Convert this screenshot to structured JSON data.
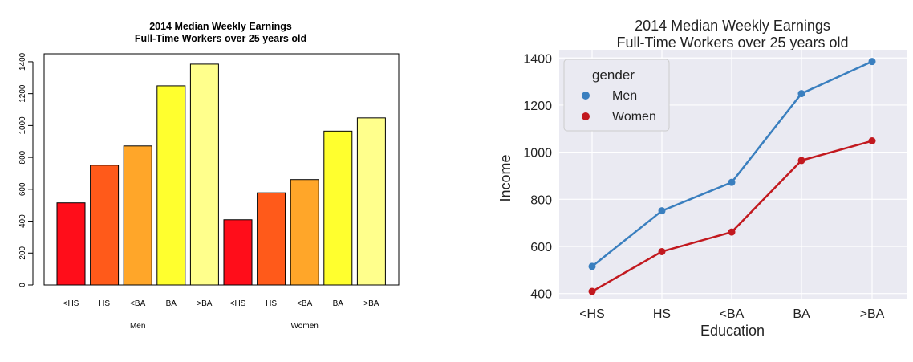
{
  "chart_data": [
    {
      "type": "bar",
      "title": "2014 Median Weekly Earnings",
      "subtitle": "Full-Time Workers over 25 years old",
      "groups": [
        "Men",
        "Women"
      ],
      "categories": [
        "<HS",
        "HS",
        "<BA",
        "BA",
        ">BA"
      ],
      "colors": [
        "#ff0d1a",
        "#ff5a1a",
        "#ffa629",
        "#ffff2e",
        "#ffff8c"
      ],
      "series": [
        {
          "name": "Men",
          "values": [
            515,
            751,
            872,
            1249,
            1385
          ]
        },
        {
          "name": "Women",
          "values": [
            409,
            578,
            661,
            965,
            1048
          ]
        }
      ],
      "ylim": [
        0,
        1450
      ],
      "yticks": [
        0,
        200,
        400,
        600,
        800,
        1000,
        1200,
        1400
      ],
      "grid": false
    },
    {
      "type": "line",
      "title": "2014 Median Weekly Earnings",
      "subtitle": "Full-Time Workers over 25 years old",
      "xlabel": "Education",
      "ylabel": "Income",
      "categories": [
        "<HS",
        "HS",
        "<BA",
        "BA",
        ">BA"
      ],
      "legend_title": "gender",
      "legend_position": "top-left",
      "series": [
        {
          "name": "Men",
          "color": "#3a7fbf",
          "values": [
            515,
            751,
            872,
            1249,
            1385
          ]
        },
        {
          "name": "Women",
          "color": "#c2191f",
          "values": [
            409,
            578,
            661,
            965,
            1048
          ]
        }
      ],
      "ylim": [
        375,
        1435
      ],
      "yticks": [
        400,
        600,
        800,
        1000,
        1200,
        1400
      ],
      "grid": true,
      "background": "#eaeaf2"
    }
  ]
}
